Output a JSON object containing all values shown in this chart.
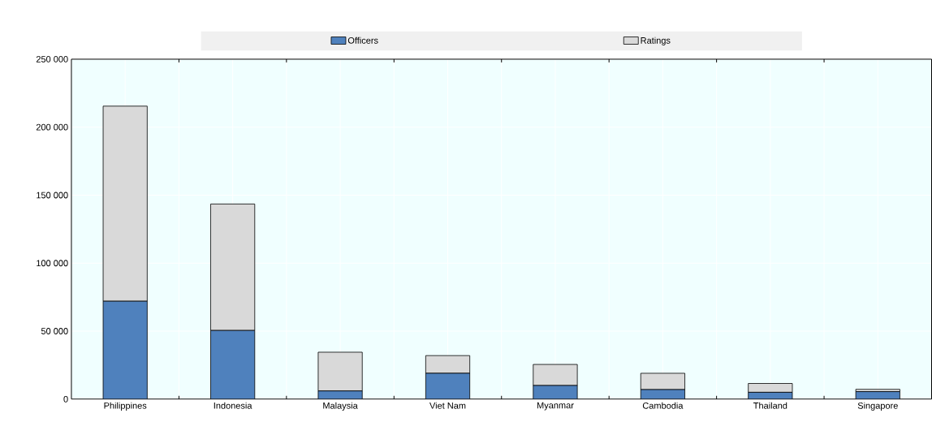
{
  "chart_data": {
    "type": "bar",
    "stacked": true,
    "categories": [
      "Philippines",
      "Indonesia",
      "Malaysia",
      "Viet Nam",
      "Myanmar",
      "Cambodia",
      "Thailand",
      "Singapore"
    ],
    "series": [
      {
        "name": "Officers",
        "color": "#4f81bd",
        "values": [
          72000,
          50500,
          6000,
          19000,
          10000,
          7000,
          5000,
          5500
        ]
      },
      {
        "name": "Ratings",
        "color": "#d9d9d9",
        "values": [
          143500,
          93000,
          28500,
          13000,
          15500,
          12000,
          6500,
          1700
        ]
      }
    ],
    "ylim": [
      0,
      250000
    ],
    "yticks": [
      0,
      {
        "value": 50000,
        "label": "50 000"
      },
      {
        "value": 100000,
        "label": "100 000"
      },
      {
        "value": 150000,
        "label": "150 000"
      },
      {
        "value": 200000,
        "label": "200 000"
      },
      {
        "value": 250000,
        "label": "250 000"
      }
    ],
    "grid": true,
    "legend": "top"
  }
}
